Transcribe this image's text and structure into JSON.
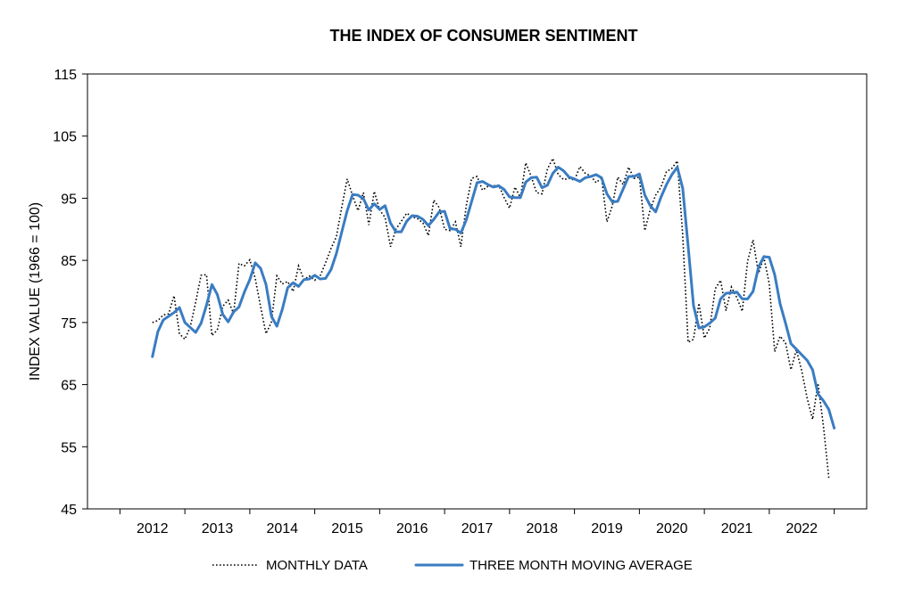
{
  "chart_data": {
    "type": "line",
    "title": "THE INDEX OF CONSUMER SENTIMENT",
    "xlabel": "",
    "ylabel": "INDEX VALUE (1966 = 100)",
    "ylim": [
      45,
      115
    ],
    "yticks": [
      45,
      55,
      65,
      75,
      85,
      95,
      105,
      115
    ],
    "xlim": [
      2011.0,
      2023.0
    ],
    "xticks": [
      2012,
      2013,
      2014,
      2015,
      2016,
      2017,
      2018,
      2019,
      2020,
      2021,
      2022
    ],
    "xtick_labels": [
      "2012",
      "2013",
      "2014",
      "2015",
      "2016",
      "2017",
      "2018",
      "2019",
      "2020",
      "2021",
      "2022"
    ],
    "grid": false,
    "legend_position": "bottom",
    "series": [
      {
        "name": "MONTHLY DATA",
        "color": "#000000",
        "style": "dotted",
        "x_start": 2012.0,
        "x_step": 0.0833333,
        "values": [
          75.0,
          75.3,
          76.2,
          76.4,
          79.3,
          73.2,
          72.3,
          74.3,
          78.3,
          82.6,
          82.7,
          72.9,
          73.8,
          77.6,
          78.6,
          76.4,
          84.5,
          84.1,
          85.1,
          82.1,
          77.5,
          73.2,
          75.1,
          82.5,
          81.2,
          81.6,
          80.0,
          84.1,
          81.9,
          82.5,
          81.8,
          82.5,
          84.6,
          86.9,
          88.8,
          93.6,
          98.1,
          95.4,
          93.0,
          95.9,
          90.7,
          96.1,
          93.1,
          91.9,
          87.2,
          90.0,
          91.3,
          92.6,
          92.0,
          91.7,
          91.0,
          89.0,
          94.7,
          93.5,
          90.0,
          89.8,
          91.2,
          87.2,
          93.8,
          98.2,
          98.5,
          96.3,
          96.9,
          97.0,
          97.1,
          95.1,
          93.4,
          96.8,
          95.1,
          100.7,
          98.5,
          95.9,
          95.7,
          99.7,
          101.4,
          98.8,
          98.0,
          98.2,
          97.9,
          100.1,
          99.0,
          98.6,
          97.5,
          98.3,
          91.2,
          93.8,
          98.4,
          97.2,
          100.0,
          98.2,
          98.4,
          89.8,
          93.2,
          95.5,
          96.8,
          99.3,
          99.8,
          101.0,
          89.1,
          71.8,
          72.3,
          78.1,
          72.5,
          74.1,
          80.4,
          81.8,
          76.9,
          80.7,
          79.0,
          76.8,
          84.9,
          88.3,
          82.9,
          85.5,
          81.2,
          70.3,
          72.8,
          71.7,
          67.4,
          70.6,
          67.2,
          62.8,
          59.4,
          65.2,
          58.4,
          50.0
        ]
      },
      {
        "name": "THREE MONTH MOVING AVERAGE",
        "color": "#3A7CC2",
        "style": "solid",
        "x_start": 2012.0,
        "x_step": 0.0833333,
        "values": [
          69.5,
          73.5,
          75.4,
          76.0,
          76.6,
          77.4,
          75.0,
          74.2,
          73.4,
          74.9,
          77.8,
          81.1,
          79.5,
          76.3,
          75.1,
          76.7,
          77.5,
          79.9,
          81.9,
          84.6,
          83.7,
          81.1,
          76.0,
          74.4,
          77.1,
          80.6,
          81.4,
          80.8,
          81.9,
          82.0,
          82.6,
          82.0,
          82.1,
          83.5,
          86.1,
          89.6,
          93.0,
          95.6,
          95.5,
          94.9,
          93.1,
          94.1,
          93.2,
          93.8,
          91.0,
          89.6,
          89.6,
          91.3,
          92.2,
          92.1,
          91.6,
          90.6,
          91.6,
          92.8,
          92.9,
          90.1,
          90.0,
          89.4,
          91.5,
          94.5,
          97.5,
          97.7,
          97.2,
          96.8,
          97.0,
          96.4,
          95.2,
          95.1,
          95.1,
          97.6,
          98.3,
          98.4,
          96.7,
          97.1,
          99.0,
          100.0,
          99.4,
          98.4,
          98.1,
          97.7,
          98.3,
          98.5,
          98.8,
          98.3,
          95.7,
          94.4,
          94.5,
          96.5,
          98.5,
          98.5,
          98.9,
          95.5,
          93.8,
          92.8,
          95.2,
          97.2,
          98.8,
          100.0,
          96.6,
          87.3,
          77.7,
          74.1,
          74.3,
          74.9,
          75.7,
          78.8,
          79.7,
          79.8,
          79.9,
          78.8,
          78.8,
          80.0,
          83.9,
          85.6,
          85.5,
          82.7,
          78.0,
          74.9,
          71.6,
          70.7,
          69.8,
          68.9,
          67.4,
          63.5,
          62.4,
          61.0,
          58.0
        ]
      }
    ]
  }
}
